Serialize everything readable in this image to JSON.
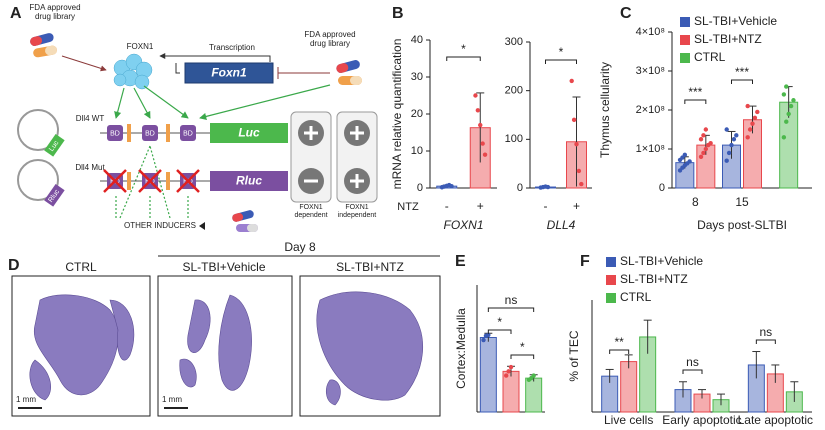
{
  "panel_labels": [
    "A",
    "B",
    "C",
    "D",
    "E",
    "F"
  ],
  "panel_a": {
    "drug_library_left": [
      "FDA approved",
      "drug library"
    ],
    "drug_library_right": [
      "FDA approved",
      "drug library"
    ],
    "protein": "FOXN1",
    "transcription": "Transcription",
    "gene": "Foxn1",
    "wt_construct": "Dll4 WT",
    "mut_construct": "Dll4 Mut",
    "wt_plasmid": "Luc",
    "mut_plasmid": "Rluc",
    "wt_sites": [
      "BD",
      "BD",
      "BD"
    ],
    "mut_sites": [
      "BD",
      "BD",
      "BD"
    ],
    "wt_reporter": "Luc",
    "mut_reporter": "Rluc",
    "other_inducers": "OTHER INDUCERS",
    "foxn1_dependent": [
      "FOXN1",
      "dependent"
    ],
    "foxn1_independent": [
      "FOXN1",
      "independent"
    ]
  },
  "panel_d": {
    "title": "Day 8",
    "groups": [
      "CTRL",
      "SL-TBI+Vehicle",
      "SL-TBI+NTZ"
    ],
    "scale_bars": [
      "1 mm",
      "1 mm"
    ]
  },
  "chart_data": [
    {
      "type": "bar",
      "ylabel": "mRNA relative quantification",
      "x_label": "FOXN1",
      "row_label": "NTZ",
      "categories": [
        "-",
        "+"
      ],
      "values": [
        0.5,
        16.3
      ],
      "errors": [
        0.3,
        9.4
      ],
      "points": [
        [
          0.2,
          0.4,
          0.6,
          0.8,
          0.5
        ],
        [
          25,
          21,
          17,
          12,
          9
        ]
      ],
      "colors": [
        "#3b5bb5",
        "#e8474c"
      ],
      "ylim": [
        0,
        40
      ],
      "yticks": [
        0,
        10,
        20,
        30,
        40
      ],
      "annotations": [
        "*"
      ]
    },
    {
      "type": "bar",
      "x_label": "DLL4",
      "categories": [
        "-",
        "+"
      ],
      "values": [
        2,
        95
      ],
      "errors": [
        1,
        92
      ],
      "points": [
        [
          1,
          2,
          3,
          2
        ],
        [
          220,
          140,
          90,
          35,
          8
        ]
      ],
      "colors": [
        "#3b5bb5",
        "#e8474c"
      ],
      "ylim": [
        0,
        300
      ],
      "yticks": [
        0,
        100,
        200,
        300
      ],
      "annotations": [
        "*"
      ]
    },
    {
      "type": "bar",
      "ylabel": "Thymus cellularity",
      "x_label": "Days post-SLTBI",
      "categories": [
        "8",
        "15",
        null
      ],
      "ylim": [
        0,
        400000000
      ],
      "yticks": [
        0,
        {
          "value": 100000000,
          "label": "1×10⁸"
        },
        {
          "value": 200000000,
          "label": "2×10⁸"
        },
        {
          "value": 300000000,
          "label": "3×10⁸"
        },
        {
          "value": 400000000,
          "label": "4×10⁸"
        }
      ],
      "series": [
        {
          "name": "SL-TBI+Vehicle",
          "color": "#3b5bb5",
          "values": [
            65000000,
            110000000,
            null
          ],
          "errors": [
            15000000,
            35000000,
            null
          ],
          "points": [
            [
              45000000,
              52000000,
              58000000,
              63000000,
              68000000,
              72000000,
              78000000,
              85000000
            ],
            [
              70000000,
              90000000,
              110000000,
              125000000,
              135000000,
              150000000
            ],
            null
          ]
        },
        {
          "name": "SL-TBI+NTZ",
          "color": "#e8474c",
          "values": [
            110000000,
            175000000,
            null
          ],
          "errors": [
            25000000,
            35000000,
            null
          ],
          "points": [
            [
              80000000,
              90000000,
              100000000,
              110000000,
              115000000,
              125000000,
              135000000,
              150000000
            ],
            [
              130000000,
              150000000,
              165000000,
              180000000,
              195000000,
              210000000
            ],
            null
          ]
        },
        {
          "name": "CTRL",
          "color": "#4cb84c",
          "values": [
            null,
            null,
            220000000
          ],
          "errors": [
            null,
            null,
            40000000
          ],
          "points": [
            null,
            null,
            [
              130000000,
              170000000,
              190000000,
              210000000,
              225000000,
              240000000,
              260000000
            ]
          ]
        }
      ],
      "annotations": [
        "***",
        "***"
      ]
    },
    {
      "type": "bar",
      "ylabel": "Cortex:Medulla",
      "values": [
        8.8,
        4.8,
        4.0
      ],
      "errors": [
        0.5,
        0.6,
        0.4
      ],
      "points": [
        [
          8.5,
          9.0,
          9.1
        ],
        [
          4.3,
          4.8,
          5.3
        ],
        [
          3.8,
          4.0,
          4.3
        ]
      ],
      "colors": [
        "#3b5bb5",
        "#e8474c",
        "#4cb84c"
      ],
      "ylim": [
        0,
        15
      ],
      "annotations": [
        "*",
        "*",
        "ns"
      ]
    },
    {
      "type": "bar",
      "ylabel": "% of TEC",
      "categories": [
        "Live cells",
        "Early apoptotic",
        "Late apoptotic"
      ],
      "ylim": [
        0,
        100
      ],
      "series": [
        {
          "name": "SL-TBI+Vehicle",
          "color": "#3b5bb5",
          "values": [
            32,
            20,
            42
          ],
          "errors": [
            6,
            7,
            12
          ]
        },
        {
          "name": "SL-TBI+NTZ",
          "color": "#e8474c",
          "values": [
            45,
            16,
            34
          ],
          "errors": [
            6,
            4,
            8
          ]
        },
        {
          "name": "CTRL",
          "color": "#4cb84c",
          "values": [
            67,
            11,
            18
          ],
          "errors": [
            15,
            5,
            9
          ]
        }
      ],
      "annotations": [
        "**",
        "ns",
        "ns"
      ]
    }
  ]
}
